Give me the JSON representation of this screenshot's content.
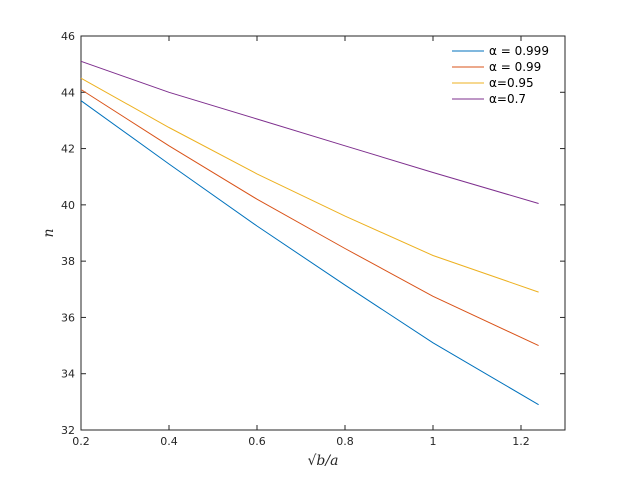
{
  "chart_data": {
    "type": "line",
    "title": "",
    "xlabel": "√b/a",
    "ylabel": "n",
    "xlim": [
      0.2,
      1.3
    ],
    "ylim": [
      32,
      46
    ],
    "xticks": [
      0.2,
      0.4,
      0.6,
      0.8,
      1,
      1.2
    ],
    "xtick_labels": [
      "0.2",
      "0.4",
      "0.6",
      "0.8",
      "1",
      "1.2"
    ],
    "yticks": [
      32,
      34,
      36,
      38,
      40,
      42,
      44,
      46
    ],
    "ytick_labels": [
      "32",
      "34",
      "36",
      "38",
      "40",
      "42",
      "44",
      "46"
    ],
    "grid": false,
    "legend_position": "top-right",
    "x": [
      0.2,
      0.4,
      0.6,
      0.8,
      1.0,
      1.24
    ],
    "series": [
      {
        "name": "α = 0.999",
        "color": "#0072BD",
        "values": [
          43.7,
          41.45,
          39.25,
          37.15,
          35.1,
          32.9
        ]
      },
      {
        "name": "α = 0.99",
        "color": "#D95319",
        "values": [
          44.1,
          42.1,
          40.2,
          38.45,
          36.75,
          35.0
        ]
      },
      {
        "name": "α=0.95",
        "color": "#EDB120",
        "values": [
          44.5,
          42.75,
          41.1,
          39.6,
          38.2,
          36.9
        ]
      },
      {
        "name": "α=0.7",
        "color": "#7E2F8E",
        "values": [
          45.1,
          44.0,
          43.05,
          42.1,
          41.15,
          40.05
        ]
      }
    ]
  }
}
